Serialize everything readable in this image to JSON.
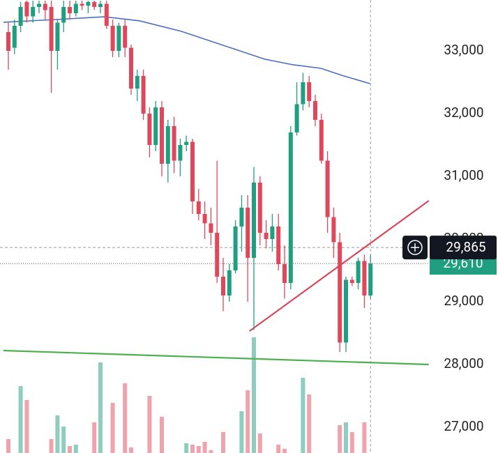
{
  "chart_data": {
    "type": "candlestick",
    "up_color": "#1f9e80",
    "down_color": "#e0475b",
    "ylim": [
      26589,
      33811
    ],
    "yticks": [
      {
        "value": 27000,
        "label": "27,000"
      },
      {
        "value": 28000,
        "label": "28,000"
      },
      {
        "value": 29000,
        "label": "29,000"
      },
      {
        "value": 30000,
        "label": "30,000"
      },
      {
        "value": 31000,
        "label": "31,000"
      },
      {
        "value": 32000,
        "label": "32,000"
      },
      {
        "value": 33000,
        "label": "33,000"
      }
    ],
    "open": [
      33300,
      33050,
      33400,
      33780,
      33550,
      33700,
      33750,
      33700,
      33000,
      33450,
      33700,
      33600,
      33750,
      33720,
      33780,
      33700,
      33750,
      33400,
      33000,
      33400,
      33050,
      32400,
      32600,
      32000,
      31500,
      32100,
      31200,
      31800,
      31250,
      31500,
      31550,
      30600,
      30400,
      30250,
      30100,
      29400,
      29100,
      29500,
      30200,
      30500,
      29700,
      30900,
      30100,
      30000,
      30200,
      29600,
      29300,
      31700,
      32150,
      32500,
      32200,
      31900,
      31250,
      30350,
      29950,
      28350,
      29350,
      29300,
      29650,
      29100
    ],
    "high": [
      33450,
      33500,
      33780,
      33800,
      33800,
      33800,
      33800,
      33800,
      33500,
      33800,
      33800,
      33800,
      33800,
      33800,
      33800,
      33800,
      33800,
      33500,
      33450,
      33500,
      33100,
      32700,
      32700,
      32100,
      32200,
      32200,
      31900,
      31950,
      31600,
      31650,
      31600,
      30800,
      30600,
      30500,
      31250,
      29700,
      29600,
      30300,
      30700,
      30700,
      31150,
      31000,
      30300,
      30400,
      30400,
      29900,
      31800,
      32500,
      32650,
      32600,
      32300,
      32000,
      31400,
      30500,
      30100,
      29400,
      29400,
      29700,
      29750,
      29750
    ],
    "low": [
      32700,
      32950,
      33300,
      33450,
      33450,
      33600,
      33500,
      32330,
      32700,
      33300,
      33500,
      33550,
      33650,
      33600,
      33650,
      33600,
      33350,
      32900,
      32900,
      32900,
      32300,
      32200,
      31900,
      31300,
      31400,
      31000,
      30900,
      31050,
      31000,
      31400,
      30400,
      30300,
      30000,
      29900,
      29300,
      28850,
      29000,
      29450,
      29800,
      29000,
      28550,
      29900,
      29850,
      29800,
      29500,
      29050,
      29200,
      31650,
      32050,
      32100,
      31800,
      31200,
      30100,
      29700,
      28200,
      28200,
      29250,
      29200,
      28900,
      29050
    ],
    "close": [
      33000,
      33400,
      33700,
      33550,
      33700,
      33750,
      33650,
      33000,
      33450,
      33700,
      33600,
      33750,
      33720,
      33780,
      33700,
      33750,
      33400,
      33000,
      33400,
      33050,
      32400,
      32600,
      32000,
      31500,
      32100,
      31200,
      31800,
      31250,
      31500,
      31550,
      30600,
      30400,
      30250,
      30100,
      29400,
      29100,
      29500,
      30200,
      30500,
      29700,
      30900,
      30100,
      30000,
      30200,
      29600,
      29300,
      31700,
      32150,
      32500,
      32200,
      31900,
      31250,
      30350,
      29950,
      28350,
      29350,
      29300,
      29650,
      29100,
      29610
    ],
    "volume": [
      10,
      0,
      48,
      38,
      0,
      0,
      0,
      10,
      27,
      19,
      5,
      6,
      0,
      0,
      22,
      65,
      0,
      36,
      0,
      50,
      4,
      0,
      0,
      41,
      0,
      26,
      0,
      0,
      0,
      7,
      6,
      5,
      8,
      2,
      0,
      15,
      0,
      0,
      30,
      45,
      83,
      14,
      0,
      0,
      6,
      3,
      0,
      0,
      54,
      42,
      0,
      0,
      0,
      0,
      20,
      22,
      15,
      0,
      22,
      0
    ],
    "lines": [
      {
        "color": "#4a6fbf",
        "x": [
          -0.8,
          7.7,
          15.7,
          21.4,
          28.2,
          35,
          41.8,
          46.4,
          50.9,
          54.3,
          58.9
        ],
        "values": [
          33456,
          33500,
          33544,
          33478,
          33311,
          33089,
          32867,
          32778,
          32722,
          32611,
          32478
        ]
      },
      {
        "color": "#d9455a",
        "x": [
          39.3,
          68.5
        ],
        "values": [
          28533,
          30611
        ]
      },
      {
        "color": "#4caf50",
        "x": [
          -0.8,
          68.5
        ],
        "values": [
          28222,
          28000
        ]
      }
    ],
    "crosshair": {
      "value": 29865,
      "label": "29,865"
    },
    "last_price": {
      "value": 29610,
      "label": "29,610"
    }
  }
}
